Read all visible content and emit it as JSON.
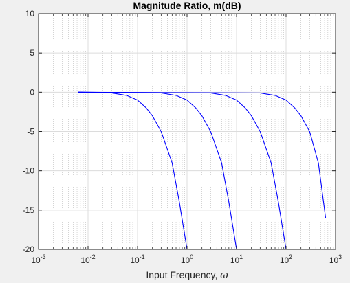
{
  "chart_data": {
    "type": "line",
    "title": "Magnitude Ratio, m(dB)",
    "xlabel_text": "Input Frequency, ",
    "xlabel_symbol": "ω",
    "xscale": "log",
    "xlim": [
      0.001,
      1000
    ],
    "ylim": [
      -20,
      10
    ],
    "x_ticks": [
      {
        "base": "10",
        "exp": "-3"
      },
      {
        "base": "10",
        "exp": "-2"
      },
      {
        "base": "10",
        "exp": "-1"
      },
      {
        "base": "10",
        "exp": "0"
      },
      {
        "base": "10",
        "exp": "1"
      },
      {
        "base": "10",
        "exp": "2"
      },
      {
        "base": "10",
        "exp": "3"
      }
    ],
    "y_ticks": [
      "10",
      "5",
      "0",
      "-5",
      "-10",
      "-15",
      "-20"
    ],
    "grid": true,
    "minor_grid": true,
    "line_color": "#0000ff",
    "series": [
      {
        "x": [
          0.0063,
          0.03,
          0.06,
          0.1,
          0.15,
          0.2,
          0.3,
          0.5,
          0.7,
          1.0
        ],
        "y": [
          0.0,
          -0.1,
          -0.4,
          -1.0,
          -2.0,
          -3.0,
          -5.0,
          -9.0,
          -14.0,
          -20.0
        ]
      },
      {
        "x": [
          0.0063,
          0.3,
          0.6,
          1.0,
          1.5,
          2.0,
          3.0,
          5.0,
          7.0,
          10.0
        ],
        "y": [
          0.0,
          -0.1,
          -0.4,
          -1.0,
          -2.0,
          -3.0,
          -5.0,
          -9.0,
          -14.0,
          -20.0
        ]
      },
      {
        "x": [
          0.0063,
          3.0,
          6.0,
          10.0,
          15.0,
          20.0,
          30.0,
          50.0,
          70.0,
          100.0
        ],
        "y": [
          0.0,
          -0.1,
          -0.4,
          -1.0,
          -2.0,
          -3.0,
          -5.0,
          -9.0,
          -14.0,
          -20.0
        ]
      },
      {
        "x": [
          0.0063,
          30.0,
          60.0,
          100.0,
          150.0,
          200.0,
          300.0,
          450.0,
          630.0
        ],
        "y": [
          0.0,
          -0.1,
          -0.4,
          -1.0,
          -2.0,
          -3.0,
          -5.0,
          -9.0,
          -16.0
        ]
      }
    ]
  }
}
